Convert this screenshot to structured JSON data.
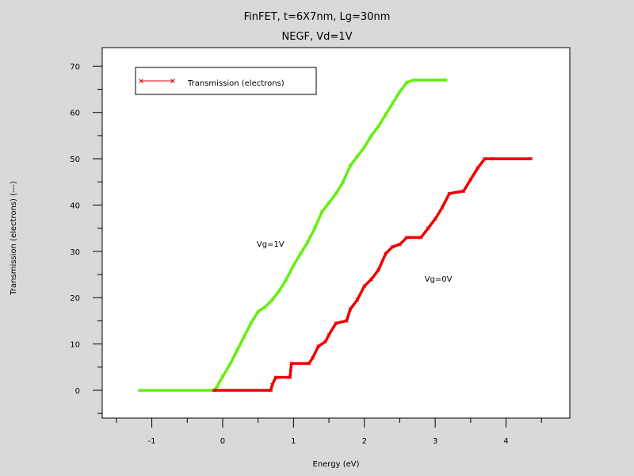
{
  "chart_data": {
    "type": "line",
    "title": "FinFET, t=6X7nm, Lg=30nm",
    "subtitle": "NEGF, Vd=1V",
    "xlabel": "Energy (eV)",
    "ylabel": "Transmission (electrons) (---)",
    "xlim": [
      -1.7,
      4.9
    ],
    "ylim": [
      -6,
      74
    ],
    "xticks": [
      -1,
      0,
      1,
      2,
      3,
      4
    ],
    "yticks": [
      0,
      10,
      20,
      30,
      40,
      50,
      60,
      70
    ],
    "grid": false,
    "legend_position": "top-left",
    "legend": [
      {
        "label": "Transmission (electrons)",
        "color": "#dd0000"
      }
    ],
    "annotations": [
      {
        "text": "Vg=1V",
        "x": 0.48,
        "y": 31
      },
      {
        "text": "Vg=0V",
        "x": 2.85,
        "y": 23.5
      }
    ],
    "series": [
      {
        "color": "#66ee11",
        "points": [
          [
            -1.17,
            0
          ],
          [
            -0.12,
            0
          ],
          [
            -0.08,
            0.8
          ],
          [
            0,
            3
          ],
          [
            0.1,
            5.5
          ],
          [
            0.2,
            8.5
          ],
          [
            0.3,
            11.5
          ],
          [
            0.4,
            14.5
          ],
          [
            0.5,
            17
          ],
          [
            0.6,
            18
          ],
          [
            0.7,
            19.5
          ],
          [
            0.8,
            21.5
          ],
          [
            0.9,
            24
          ],
          [
            1.0,
            27
          ],
          [
            1.1,
            29.5
          ],
          [
            1.2,
            32
          ],
          [
            1.3,
            35
          ],
          [
            1.4,
            38.5
          ],
          [
            1.5,
            40.5
          ],
          [
            1.6,
            42.5
          ],
          [
            1.7,
            45
          ],
          [
            1.8,
            48.5
          ],
          [
            1.9,
            50.5
          ],
          [
            2.0,
            52.5
          ],
          [
            2.1,
            55
          ],
          [
            2.2,
            57
          ],
          [
            2.3,
            59.5
          ],
          [
            2.4,
            62
          ],
          [
            2.5,
            64.5
          ],
          [
            2.6,
            66.5
          ],
          [
            2.7,
            67
          ],
          [
            3.15,
            67
          ]
        ]
      },
      {
        "color": "#ee0000",
        "points": [
          [
            -0.12,
            0
          ],
          [
            0.68,
            0
          ],
          [
            0.7,
            1.2
          ],
          [
            0.75,
            2.8
          ],
          [
            0.95,
            2.8
          ],
          [
            0.97,
            5.8
          ],
          [
            1.22,
            5.8
          ],
          [
            1.27,
            7
          ],
          [
            1.35,
            9.5
          ],
          [
            1.45,
            10.5
          ],
          [
            1.5,
            12
          ],
          [
            1.6,
            14.5
          ],
          [
            1.75,
            15
          ],
          [
            1.8,
            17.5
          ],
          [
            1.9,
            19.5
          ],
          [
            2.0,
            22.5
          ],
          [
            2.1,
            24
          ],
          [
            2.2,
            26
          ],
          [
            2.3,
            29.5
          ],
          [
            2.4,
            31
          ],
          [
            2.5,
            31.5
          ],
          [
            2.6,
            33
          ],
          [
            2.8,
            33
          ],
          [
            2.9,
            35
          ],
          [
            3.0,
            37
          ],
          [
            3.1,
            39.5
          ],
          [
            3.2,
            42.5
          ],
          [
            3.4,
            43
          ],
          [
            3.5,
            45.5
          ],
          [
            3.6,
            48
          ],
          [
            3.7,
            50
          ],
          [
            3.8,
            50
          ],
          [
            4.35,
            50
          ]
        ]
      }
    ]
  }
}
